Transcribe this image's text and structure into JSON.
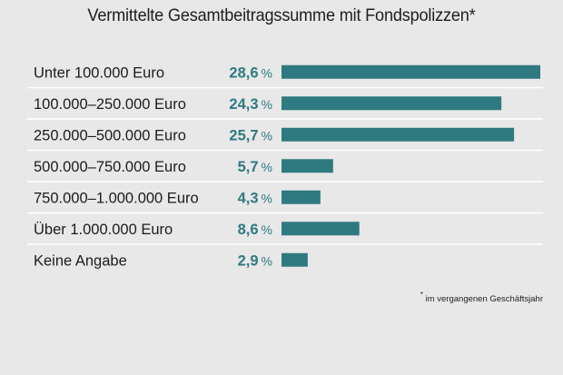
{
  "chart_data": {
    "type": "bar",
    "orientation": "horizontal",
    "title": "Vermittelte Gesamtbeitragssumme mit Fondspolizzen*",
    "categories": [
      "Unter 100.000 Euro",
      "100.000–250.000 Euro",
      "250.000–500.000 Euro",
      "500.000–750.000 Euro",
      "750.000–1.000.000 Euro",
      "Über 1.000.000 Euro",
      "Keine Angabe"
    ],
    "values": [
      28.6,
      24.3,
      25.7,
      5.7,
      4.3,
      8.6,
      2.9
    ],
    "value_labels": [
      "28,6",
      "24,3",
      "25,7",
      "5,7",
      "4,3",
      "8,6",
      "2,9"
    ],
    "unit": "%",
    "xlim": [
      0,
      28.6
    ],
    "grid": false,
    "bar_color": "#2f7a80",
    "label_color": "#2f7a80",
    "footnote": {
      "marker": "*",
      "text": "im vergangenen Geschäftsjahr"
    }
  }
}
